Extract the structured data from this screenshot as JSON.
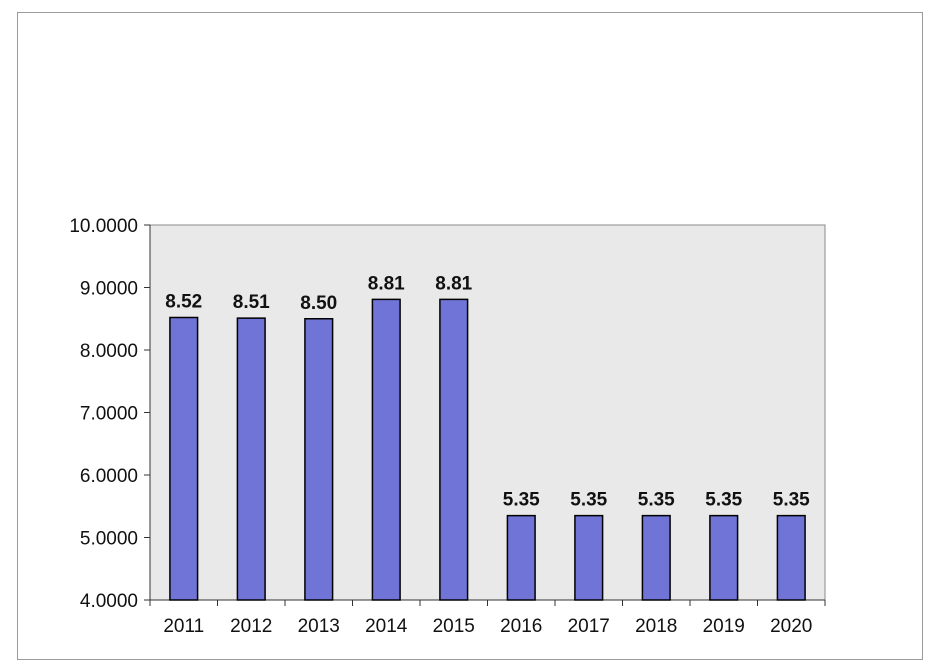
{
  "chart_data": {
    "type": "bar",
    "categories": [
      "2011",
      "2012",
      "2013",
      "2014",
      "2015",
      "2016",
      "2017",
      "2018",
      "2019",
      "2020"
    ],
    "values": [
      8.52,
      8.51,
      8.5,
      8.81,
      8.81,
      5.35,
      5.35,
      5.35,
      5.35,
      5.35
    ],
    "data_labels": [
      "8.52",
      "8.51",
      "8.50",
      "8.81",
      "8.81",
      "5.35",
      "5.35",
      "5.35",
      "5.35",
      "5.35"
    ],
    "ylim": [
      4,
      10
    ],
    "yticks": [
      4,
      5,
      6,
      7,
      8,
      9,
      10
    ],
    "ytick_labels": [
      "4.0000",
      "5.0000",
      "6.0000",
      "7.0000",
      "8.0000",
      "9.0000",
      "10.0000"
    ],
    "title": "",
    "xlabel": "",
    "ylabel": "",
    "grid": false,
    "legend": "none",
    "colors": {
      "bar_fill": "#6f74d6",
      "bar_stroke": "#000000",
      "plot_background": "#e9e9e9",
      "frame_border": "#9a9a9a"
    }
  }
}
